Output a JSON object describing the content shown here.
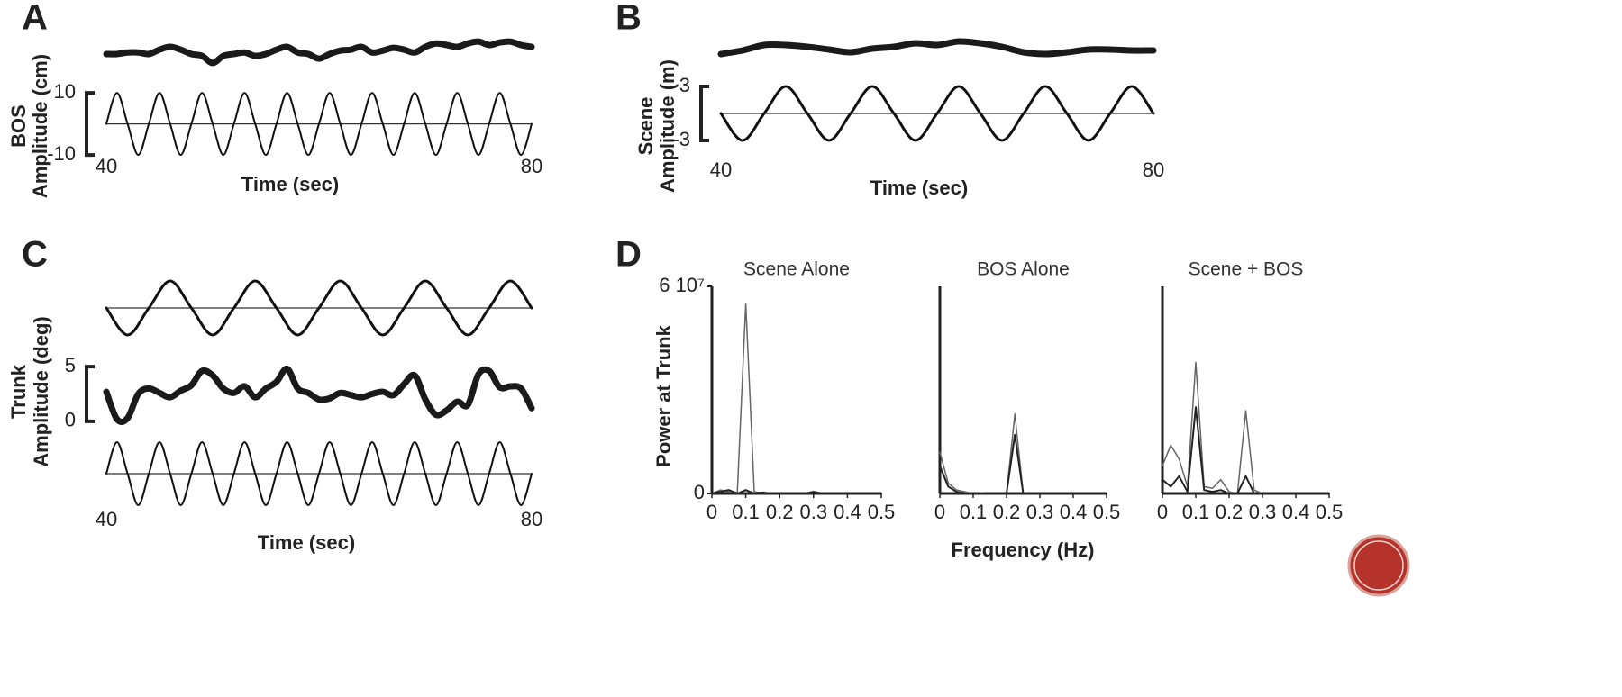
{
  "chart_data": [
    {
      "type": "line",
      "panel": "A",
      "ylabel": [
        "BOS",
        "Amplitude (cm)"
      ],
      "xlabel": "Time (sec)",
      "x": [
        40,
        41,
        42,
        43,
        44,
        45,
        46,
        47,
        48,
        49,
        50,
        51,
        52,
        53,
        54,
        55,
        56,
        57,
        58,
        59,
        60,
        61,
        62,
        63,
        64,
        65,
        66,
        67,
        68,
        69,
        70,
        71,
        72,
        73,
        74,
        75,
        76,
        77,
        78,
        79,
        80
      ],
      "xlim": [
        40,
        80
      ],
      "xticks": [
        40,
        80
      ],
      "ylim": [
        -12,
        28
      ],
      "yticks": [
        -10,
        10
      ],
      "scale_bar": true,
      "zero_line": true,
      "series": [
        {
          "color": "#111111",
          "line_width": 2,
          "smooth": true,
          "values": [
            0,
            10,
            0,
            -10,
            0,
            10,
            0,
            -10,
            0,
            10,
            0,
            -10,
            0,
            10,
            0,
            -10,
            0,
            10,
            0,
            -10,
            0,
            10,
            0,
            -10,
            0,
            10,
            0,
            -10,
            0,
            10,
            0,
            -10,
            0,
            10,
            0,
            -10,
            0,
            10,
            0,
            -10,
            0
          ]
        },
        {
          "color": "#1a1a1a",
          "line_width": 7,
          "smooth": true,
          "values": [
            22.5,
            22.5,
            23,
            23,
            22.5,
            23.9,
            24.8,
            23.9,
            22.5,
            21.9,
            19.6,
            21.9,
            22.5,
            23,
            21.9,
            22.5,
            23.9,
            24.8,
            23,
            22.5,
            21,
            22.5,
            23.6,
            23.9,
            24.8,
            23,
            23.6,
            24.5,
            23.9,
            23,
            24.8,
            25.9,
            25.4,
            24.8,
            25.9,
            26.5,
            25.4,
            26.2,
            26.5,
            25.4,
            24.8
          ]
        }
      ]
    },
    {
      "type": "line",
      "panel": "B",
      "ylabel": [
        "Scene",
        "Amplitude (m)"
      ],
      "xlabel": "Time (sec)",
      "x": [
        40,
        42,
        44,
        46,
        48,
        50,
        52,
        54,
        56,
        58,
        60,
        62,
        64,
        66,
        68,
        70,
        72,
        74,
        76,
        78,
        80
      ],
      "xlim": [
        40,
        80
      ],
      "xticks": [
        40,
        80
      ],
      "ylim": [
        -3.5,
        9
      ],
      "yticks": [
        -3,
        3
      ],
      "scale_bar": true,
      "zero_line": true,
      "series": [
        {
          "color": "#111111",
          "line_width": 3,
          "smooth": true,
          "values": [
            0,
            -3,
            0,
            3,
            0,
            -3,
            0,
            3,
            0,
            -3,
            0,
            3,
            0,
            -3,
            0,
            3,
            0,
            -3,
            0,
            3,
            0
          ]
        },
        {
          "color": "#1a1a1a",
          "line_width": 7,
          "smooth": true,
          "values": [
            6.6,
            7,
            7.6,
            7.6,
            7.4,
            7.1,
            6.8,
            7.2,
            7.4,
            7.8,
            7.6,
            8,
            7.8,
            7.4,
            6.8,
            6.6,
            6.8,
            7.1,
            7.1,
            7,
            7
          ]
        }
      ]
    },
    {
      "type": "line",
      "panel": "C",
      "x": [
        40,
        42,
        44,
        46,
        48,
        50,
        52,
        54,
        56,
        58,
        60,
        62,
        64,
        66,
        68,
        70,
        72,
        74,
        76,
        78,
        80
      ],
      "xlim": [
        40,
        80
      ],
      "ylim": [
        -3.2,
        3.2
      ],
      "zero_line": true,
      "series": [
        {
          "color": "#111111",
          "line_width": 3,
          "smooth": true,
          "values": [
            0,
            -3,
            0,
            3,
            0,
            -3,
            0,
            3,
            0,
            -3,
            0,
            3,
            0,
            -3,
            0,
            3,
            0,
            -3,
            0,
            3,
            0
          ]
        }
      ]
    },
    {
      "type": "line",
      "ylabel": [
        "Trunk",
        "Amplitude (deg)"
      ],
      "x": [
        40,
        41,
        42,
        43,
        44,
        45,
        46,
        47,
        48,
        49,
        50,
        51,
        52,
        53,
        54,
        55,
        56,
        57,
        58,
        59,
        60,
        61,
        62,
        63,
        64,
        65,
        66,
        67,
        68,
        69,
        70,
        71,
        72,
        73,
        74,
        75,
        76,
        77,
        78,
        79,
        80
      ],
      "xlim": [
        40,
        80
      ],
      "ylim": [
        -0.5,
        5.5
      ],
      "yticks": [
        0,
        5
      ],
      "scale_bar": true,
      "series": [
        {
          "color": "#1a1a1a",
          "line_width": 7,
          "smooth": true,
          "values": [
            2.7,
            0.2,
            0.3,
            2.5,
            3,
            2.6,
            2.2,
            2.8,
            3.3,
            4.6,
            4.2,
            3,
            2.6,
            3.2,
            2.2,
            3,
            3.6,
            4.8,
            3,
            2.6,
            2,
            2.1,
            2.6,
            2.4,
            2.2,
            2.5,
            2.7,
            2.4,
            3.4,
            4.2,
            2,
            0.6,
            1,
            1.8,
            1.5,
            4.3,
            4.6,
            3.1,
            3.2,
            3,
            1.2
          ]
        }
      ]
    },
    {
      "type": "line",
      "xlabel": "Time (sec)",
      "x": [
        40,
        41,
        42,
        43,
        44,
        45,
        46,
        47,
        48,
        49,
        50,
        51,
        52,
        53,
        54,
        55,
        56,
        57,
        58,
        59,
        60,
        61,
        62,
        63,
        64,
        65,
        66,
        67,
        68,
        69,
        70,
        71,
        72,
        73,
        74,
        75,
        76,
        77,
        78,
        79,
        80
      ],
      "xlim": [
        40,
        80
      ],
      "xticks": [
        40,
        80
      ],
      "ylim": [
        -11,
        11
      ],
      "zero_line": true,
      "series": [
        {
          "color": "#111111",
          "line_width": 2,
          "smooth": true,
          "values": [
            0,
            10,
            0,
            -10,
            0,
            10,
            0,
            -10,
            0,
            10,
            0,
            -10,
            0,
            10,
            0,
            -10,
            0,
            10,
            0,
            -10,
            0,
            10,
            0,
            -10,
            0,
            10,
            0,
            -10,
            0,
            10,
            0,
            -10,
            0,
            10,
            0,
            -10,
            0,
            10,
            0,
            -10,
            0
          ]
        }
      ]
    },
    {
      "type": "line",
      "panel": "D",
      "title": "Scene Alone",
      "ylabel": [
        "Power at Trunk"
      ],
      "x": [
        0,
        0.025,
        0.05,
        0.075,
        0.1,
        0.125,
        0.15,
        0.175,
        0.2,
        0.225,
        0.25,
        0.275,
        0.3,
        0.325,
        0.35,
        0.375,
        0.4,
        0.425,
        0.45,
        0.475,
        0.5
      ],
      "xlim": [
        0,
        0.5
      ],
      "xticks": [
        0,
        0.1,
        0.2,
        0.3,
        0.4,
        0.5
      ],
      "ylim": [
        0,
        60000000
      ],
      "yticks": [
        0,
        {
          "value": 60000000,
          "label": "6 10⁷"
        }
      ],
      "axes": true,
      "series": [
        {
          "color": "#666666",
          "line_width": 1.5,
          "smooth": false,
          "values": [
            0,
            1000000,
            500000,
            300000,
            55000000,
            500000,
            200000,
            0,
            0,
            0,
            0,
            0,
            300000,
            0,
            0,
            0,
            0,
            0,
            0,
            0,
            0
          ]
        },
        {
          "color": "#222222",
          "line_width": 2,
          "smooth": false,
          "values": [
            0,
            500000,
            1000000,
            0,
            1000000,
            0,
            300000,
            0,
            0,
            0,
            0,
            0,
            500000,
            0,
            0,
            0,
            0,
            0,
            0,
            0,
            0
          ]
        }
      ]
    },
    {
      "type": "line",
      "title": "BOS Alone",
      "xlabel": "Frequency (Hz)",
      "x": [
        0,
        0.025,
        0.05,
        0.075,
        0.1,
        0.125,
        0.15,
        0.175,
        0.2,
        0.225,
        0.25,
        0.275,
        0.3,
        0.325,
        0.35,
        0.375,
        0.4,
        0.425,
        0.45,
        0.475,
        0.5
      ],
      "xlim": [
        0,
        0.5
      ],
      "xticks": [
        0,
        0.1,
        0.2,
        0.3,
        0.4,
        0.5
      ],
      "ylim": [
        0,
        60000000
      ],
      "axes": true,
      "series": [
        {
          "color": "#666666",
          "line_width": 1.5,
          "smooth": false,
          "values": [
            12000000,
            3000000,
            1000000,
            500000,
            0,
            200000,
            0,
            0,
            0,
            23000000,
            0,
            0,
            0,
            0,
            0,
            0,
            0,
            0,
            0,
            0,
            0
          ]
        },
        {
          "color": "#222222",
          "line_width": 2,
          "smooth": false,
          "values": [
            8000000,
            2000000,
            500000,
            0,
            0,
            0,
            0,
            0,
            0,
            17000000,
            0,
            0,
            0,
            0,
            0,
            0,
            0,
            0,
            0,
            0,
            0
          ]
        }
      ]
    },
    {
      "type": "line",
      "title": "Scene + BOS",
      "x": [
        0,
        0.025,
        0.05,
        0.075,
        0.1,
        0.125,
        0.15,
        0.175,
        0.2,
        0.225,
        0.25,
        0.275,
        0.3,
        0.325,
        0.35,
        0.375,
        0.4,
        0.425,
        0.45,
        0.475,
        0.5
      ],
      "xlim": [
        0,
        0.5
      ],
      "xticks": [
        0,
        0.1,
        0.2,
        0.3,
        0.4,
        0.5
      ],
      "ylim": [
        0,
        60000000
      ],
      "axes": true,
      "series": [
        {
          "color": "#666666",
          "line_width": 1.5,
          "smooth": false,
          "values": [
            8000000,
            14000000,
            10000000,
            2000000,
            38000000,
            2000000,
            1500000,
            4000000,
            500000,
            0,
            24000000,
            1000000,
            0,
            0,
            0,
            0,
            0,
            0,
            0,
            0,
            0
          ]
        },
        {
          "color": "#222222",
          "line_width": 2,
          "smooth": false,
          "values": [
            4000000,
            2000000,
            5000000,
            500000,
            25000000,
            1000000,
            500000,
            1000000,
            0,
            0,
            5000000,
            0,
            0,
            0,
            0,
            0,
            0,
            0,
            0,
            0,
            0
          ]
        }
      ]
    }
  ]
}
